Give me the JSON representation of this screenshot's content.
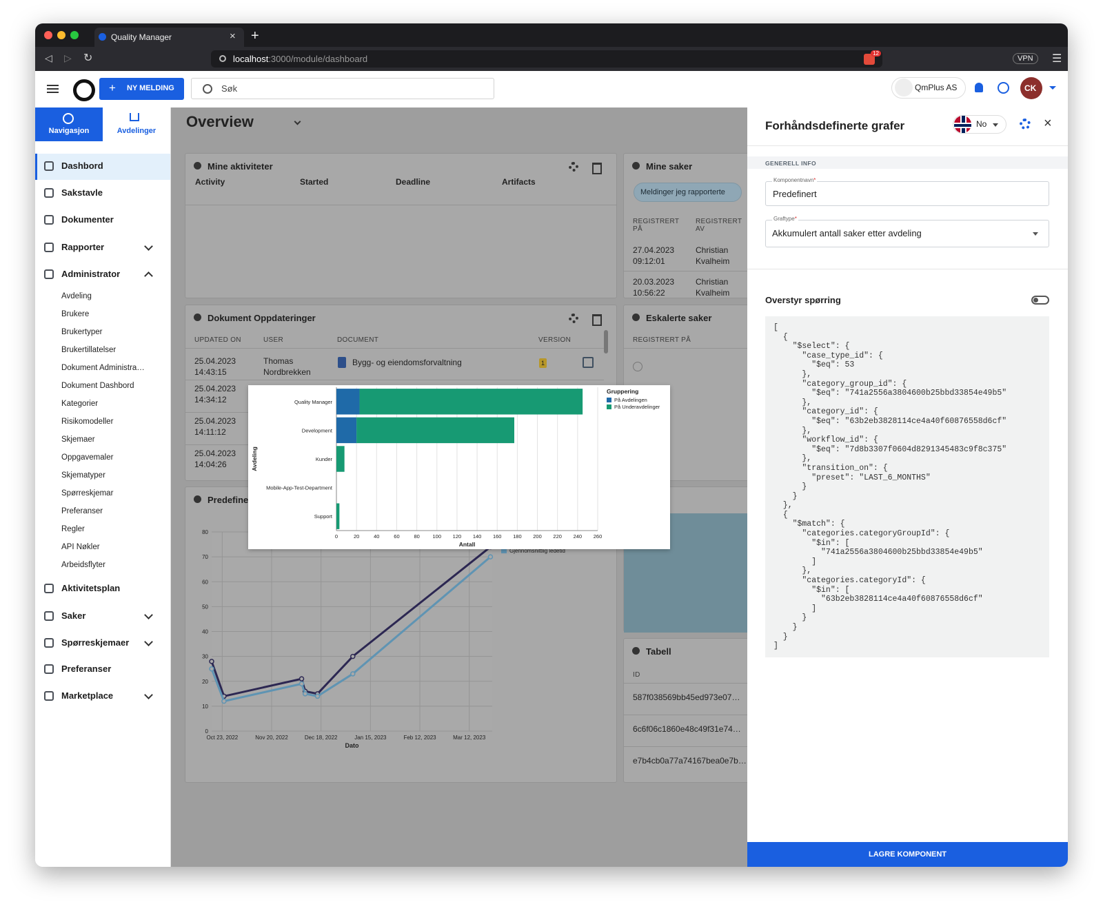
{
  "browser": {
    "tab_title": "Quality Manager",
    "url_host": "localhost",
    "url_path": ":3000/module/dashboard",
    "badge": "12",
    "vpn": "VPN"
  },
  "header": {
    "new_button": "NY MELDING",
    "search_placeholder": "Søk",
    "company": "QmPlus AS",
    "avatar": "CK"
  },
  "sidebar": {
    "tabs": [
      "Navigasjon",
      "Avdelinger"
    ],
    "menu": [
      "Dashbord",
      "Sakstavle",
      "Dokumenter",
      "Rapporter",
      "Administrator"
    ],
    "admin_submenu": [
      "Avdeling",
      "Brukere",
      "Brukertyper",
      "Brukertillatelser",
      "Dokument Administra…",
      "Dokument Dashbord",
      "Kategorier",
      "Risikomodeller",
      "Skjemaer",
      "Oppgavemaler",
      "Skjematyper",
      "Spørreskjemar",
      "Preferanser",
      "Regler",
      "API Nøkler",
      "Arbeidsflyter"
    ],
    "menu_bottom": [
      "Aktivitetsplan",
      "Saker",
      "Spørreskjemaer",
      "Preferanser",
      "Marketplace"
    ]
  },
  "dashboard": {
    "title": "Overview",
    "activities": {
      "title": "Mine aktiviteter",
      "columns": [
        "Activity",
        "Started",
        "Deadline",
        "Artifacts"
      ]
    },
    "cases": {
      "title": "Mine saker",
      "filter": "Meldinger jeg rapporterte",
      "columns": [
        "REGISTRERT PÅ",
        "REGISTRERT AV"
      ],
      "rows": [
        [
          "27.04.2023 09:12:01",
          "Christian Kvalheim"
        ],
        [
          "20.03.2023 10:56:22",
          "Christian Kvalheim"
        ]
      ]
    },
    "documents": {
      "title": "Dokument Oppdateringer",
      "columns": [
        "UPDATED ON",
        "USER",
        "DOCUMENT",
        "VERSION"
      ],
      "rows": [
        [
          "25.04.2023 14:43:15",
          "Thomas Nordbrekken",
          "Bygg- og eiendomsforvaltning",
          "1"
        ]
      ],
      "more_dates": [
        "25.04.2023 14:34:12",
        "25.04.2023 14:11:12",
        "25.04.2023 14:04:26"
      ]
    },
    "escalated": {
      "title": "Eskalerte saker",
      "columns": [
        "REGISTRERT PÅ"
      ]
    },
    "table": {
      "title": "Tabell",
      "columns": [
        "ID"
      ],
      "rows": [
        "587f038569bb45ed973e07…",
        "6c6f06c1860e48c49f31e74…",
        "e7b4cb0a77a74167bea0e7b…"
      ]
    },
    "predefined": {
      "title": "Predefinert"
    }
  },
  "line_chart": {
    "type": "line",
    "xlabel": "Dato",
    "x": [
      "2022-10-17",
      "2022-10-24",
      "2022-12-07",
      "2022-12-09",
      "2022-12-16",
      "2023-01-05",
      "2023-03-24"
    ],
    "series": [
      {
        "color": "#2c2752",
        "values": [
          28,
          14,
          21,
          16,
          15,
          30,
          74
        ]
      },
      {
        "name": "Gjennomsnittlig ledetid",
        "color": "#5f94b3",
        "values": [
          25,
          12,
          19,
          15,
          14,
          23,
          70
        ]
      }
    ],
    "xlim": [
      "2022-10-17",
      "2023-03-25"
    ],
    "xticks": [
      {
        "value": "2022-10-23",
        "label": "Oct 23, 2022"
      },
      {
        "value": "2022-11-20",
        "label": "Nov 20, 2022"
      },
      {
        "value": "2022-12-18",
        "label": "Dec 18, 2022"
      },
      {
        "value": "2023-01-15",
        "label": "Jan 15, 2023"
      },
      {
        "value": "2023-02-12",
        "label": "Feb 12, 2023"
      },
      {
        "value": "2023-03-12",
        "label": "Mar 12, 2023"
      }
    ],
    "ylim": [
      0,
      80
    ],
    "yticks": [
      0,
      10,
      20,
      30,
      40,
      50,
      60,
      70,
      80
    ],
    "grid": true
  },
  "bar_chart": {
    "type": "bar",
    "orientation": "horizontal",
    "stacked": true,
    "xlabel": "Antall",
    "ylabel": "Avdeling",
    "legend_title": "Gruppering",
    "categories": [
      "Quality Manager",
      "Development",
      "Kunder",
      "Mobile-App-Test-Department",
      "Support"
    ],
    "series": [
      {
        "name": "På Avdelingen",
        "color": "#1f6aa8",
        "values": [
          23,
          20,
          0,
          0,
          0
        ]
      },
      {
        "name": "På Underavdelinger",
        "color": "#179a73",
        "values": [
          222,
          157,
          8,
          0,
          3
        ]
      }
    ],
    "xlim": [
      0,
      260
    ],
    "xticks": [
      0,
      20,
      40,
      60,
      80,
      100,
      120,
      140,
      160,
      180,
      200,
      220,
      240,
      260
    ],
    "grid": true
  },
  "panel": {
    "title": "Forhåndsdefinerte grafer",
    "language": "No",
    "section": "GENERELL INFO",
    "name_label": "Komponentnavn",
    "name_value": "Predefinert",
    "type_label": "Graftype",
    "type_value": "Akkumulert antall saker etter avdeling",
    "required_mark": "*",
    "override_label": "Overstyr spørring",
    "query": "[\n  {\n    \"$select\": {\n      \"case_type_id\": {\n        \"$eq\": 53\n      },\n      \"category_group_id\": {\n        \"$eq\": \"741a2556a3804600b25bbd33854e49b5\"\n      },\n      \"category_id\": {\n        \"$eq\": \"63b2eb3828114ce4a40f60876558d6cf\"\n      },\n      \"workflow_id\": {\n        \"$eq\": \"7d8b3307f0604d8291345483c9f8c375\"\n      },\n      \"transition_on\": {\n        \"preset\": \"LAST_6_MONTHS\"\n      }\n    }\n  },\n  {\n    \"$match\": {\n      \"categories.categoryGroupId\": {\n        \"$in\": [\n          \"741a2556a3804600b25bbd33854e49b5\"\n        ]\n      },\n      \"categories.categoryId\": {\n        \"$in\": [\n          \"63b2eb3828114ce4a40f60876558d6cf\"\n        ]\n      }\n    }\n  }\n]",
    "save": "LAGRE KOMPONENT"
  }
}
